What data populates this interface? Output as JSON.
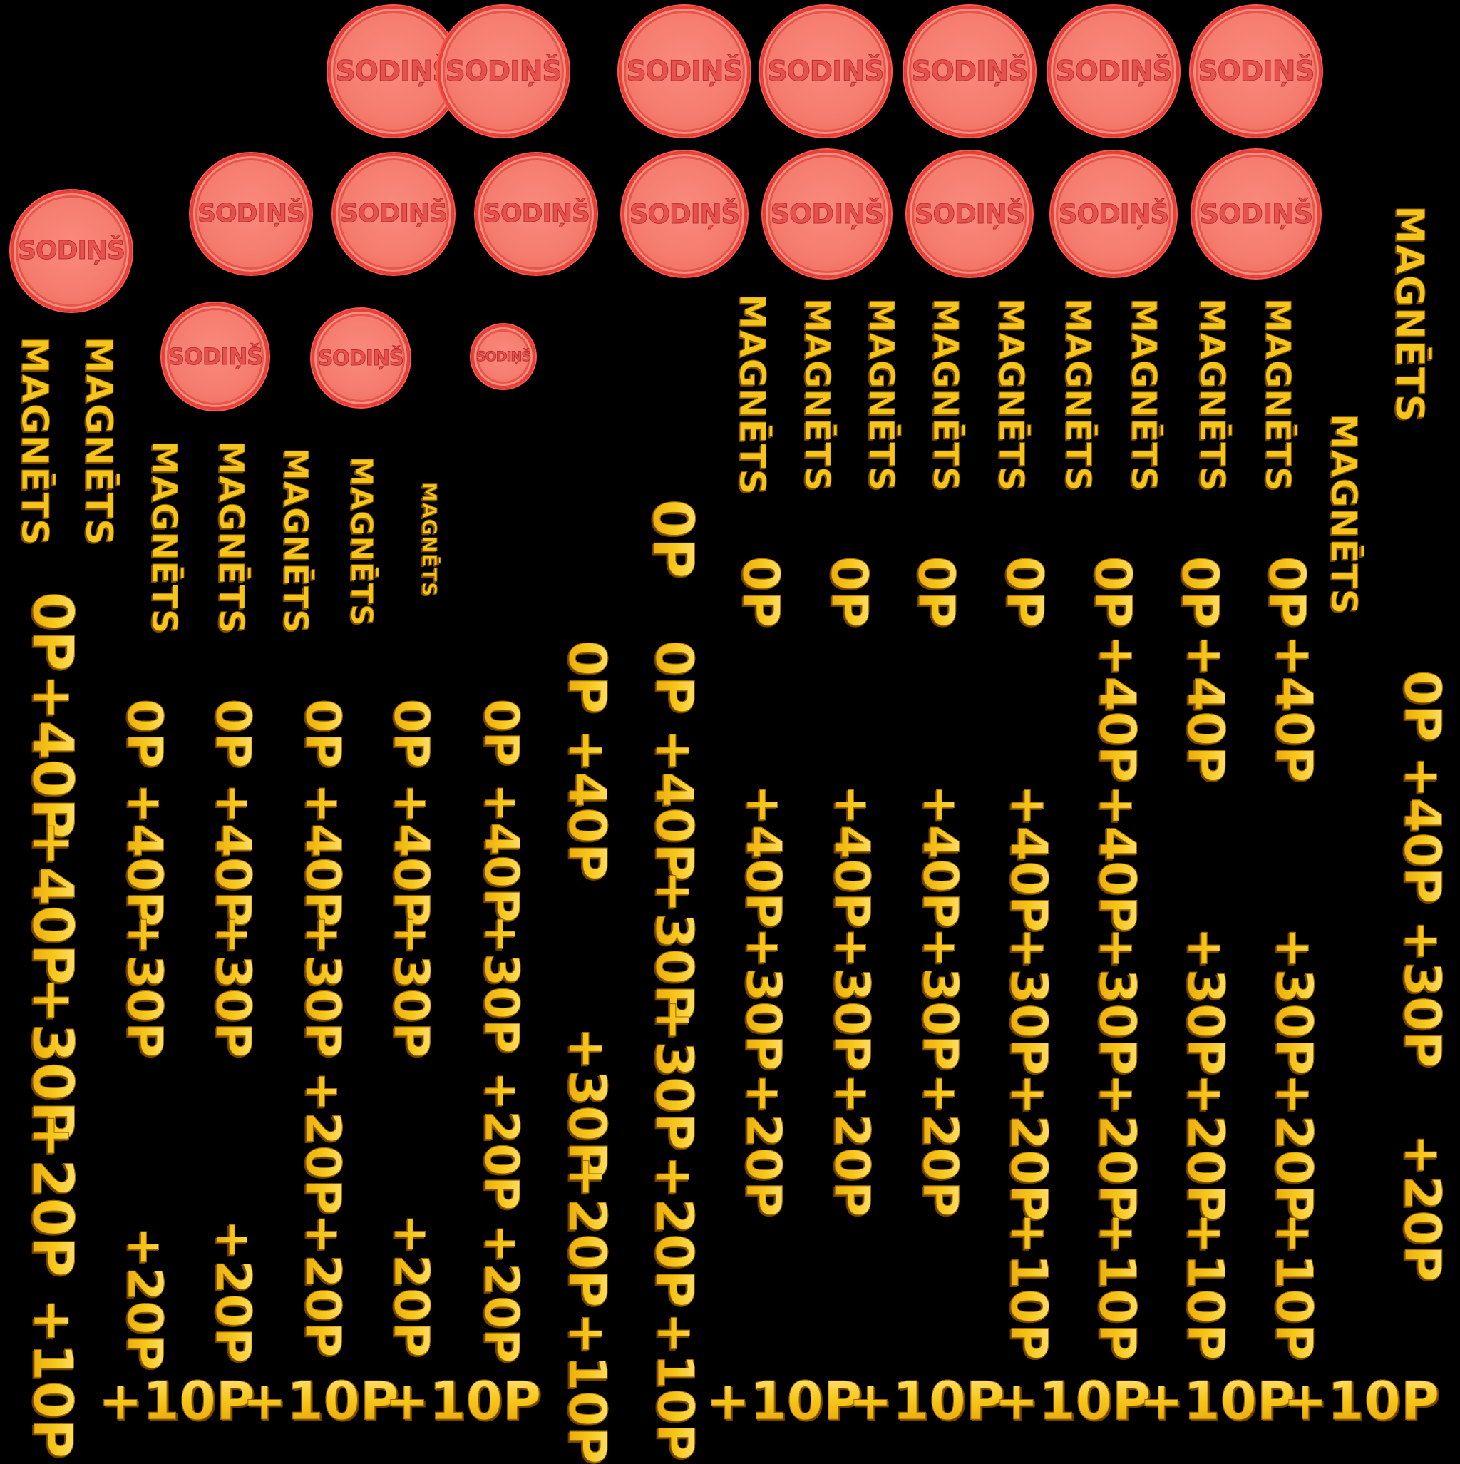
{
  "coin_label": "SODIŅŠ",
  "magnet_label": "MAGNĒTS",
  "points_sequence": [
    "0P",
    "+40P",
    "+30P",
    "+20P",
    "+10P"
  ],
  "colors": {
    "background": "#000000",
    "coin_fill": "#f57d6f",
    "coin_border": "#e8413a",
    "coin_text": "#e7514d",
    "label_gold": "#f6c51c",
    "label_outline": "#8a5b00"
  }
}
